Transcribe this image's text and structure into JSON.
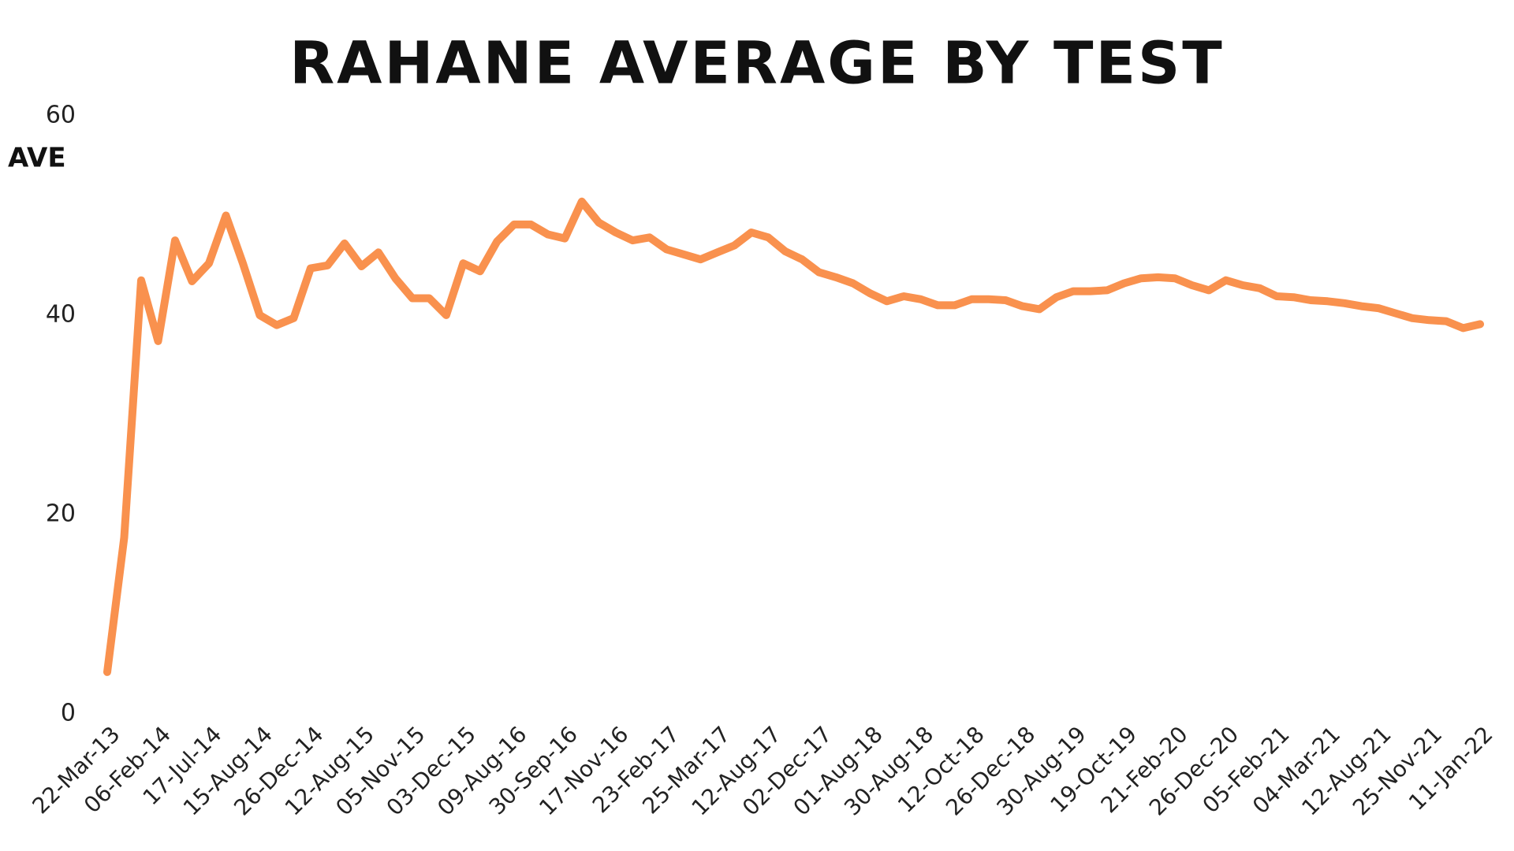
{
  "chart_data": {
    "type": "line",
    "title": "RAHANE AVERAGE BY TEST",
    "y_label": "AVE",
    "categories": [
      "22-Mar-13",
      null,
      null,
      "06-Feb-14",
      null,
      null,
      "17-Jul-14",
      null,
      null,
      "15-Aug-14",
      null,
      null,
      "26-Dec-14",
      null,
      null,
      "12-Aug-15",
      null,
      null,
      "05-Nov-15",
      null,
      null,
      "03-Dec-15",
      null,
      null,
      "09-Aug-16",
      null,
      null,
      "30-Sep-16",
      null,
      null,
      "17-Nov-16",
      null,
      null,
      "23-Feb-17",
      null,
      null,
      "25-Mar-17",
      null,
      null,
      "12-Aug-17",
      null,
      null,
      "02-Dec-17",
      null,
      null,
      "01-Aug-18",
      null,
      null,
      "30-Aug-18",
      null,
      null,
      "12-Oct-18",
      null,
      null,
      "26-Dec-18",
      null,
      null,
      "30-Aug-19",
      null,
      null,
      "19-Oct-19",
      null,
      null,
      "21-Feb-20",
      null,
      null,
      "26-Dec-20",
      null,
      null,
      "05-Feb-21",
      null,
      null,
      "04-Mar-21",
      null,
      null,
      "12-Aug-21",
      null,
      null,
      "25-Nov-21",
      null,
      null,
      "11-Jan-22"
    ],
    "values": [
      4.2,
      17.7,
      43.5,
      37.4,
      47.5,
      43.4,
      45.2,
      50,
      45.2,
      40,
      39,
      39.7,
      44.7,
      45,
      47.2,
      44.9,
      46.3,
      43.7,
      41.7,
      41.7,
      40,
      45.2,
      44.4,
      47.4,
      49.1,
      49.1,
      48.1,
      47.7,
      51.4,
      49.3,
      48.3,
      47.5,
      47.8,
      46.6,
      46.1,
      45.6,
      46.3,
      47,
      48.3,
      47.8,
      46.4,
      45.6,
      44.3,
      43.8,
      43.2,
      42.2,
      41.4,
      41.9,
      41.6,
      41,
      41,
      41.6,
      41.6,
      41.5,
      40.9,
      40.6,
      41.8,
      42.4,
      42.4,
      42.5,
      43.2,
      43.7,
      43.8,
      43.7,
      43,
      42.5,
      43.5,
      43,
      42.7,
      41.9,
      41.8,
      41.5,
      41.4,
      41.2,
      40.9,
      40.7,
      40.2,
      39.7,
      39.5,
      39.4,
      38.7,
      39.1
    ],
    "color": "#f9914e",
    "ylim": [
      0,
      60
    ],
    "yticks": [
      0,
      20,
      40,
      60
    ],
    "grid": false
  }
}
